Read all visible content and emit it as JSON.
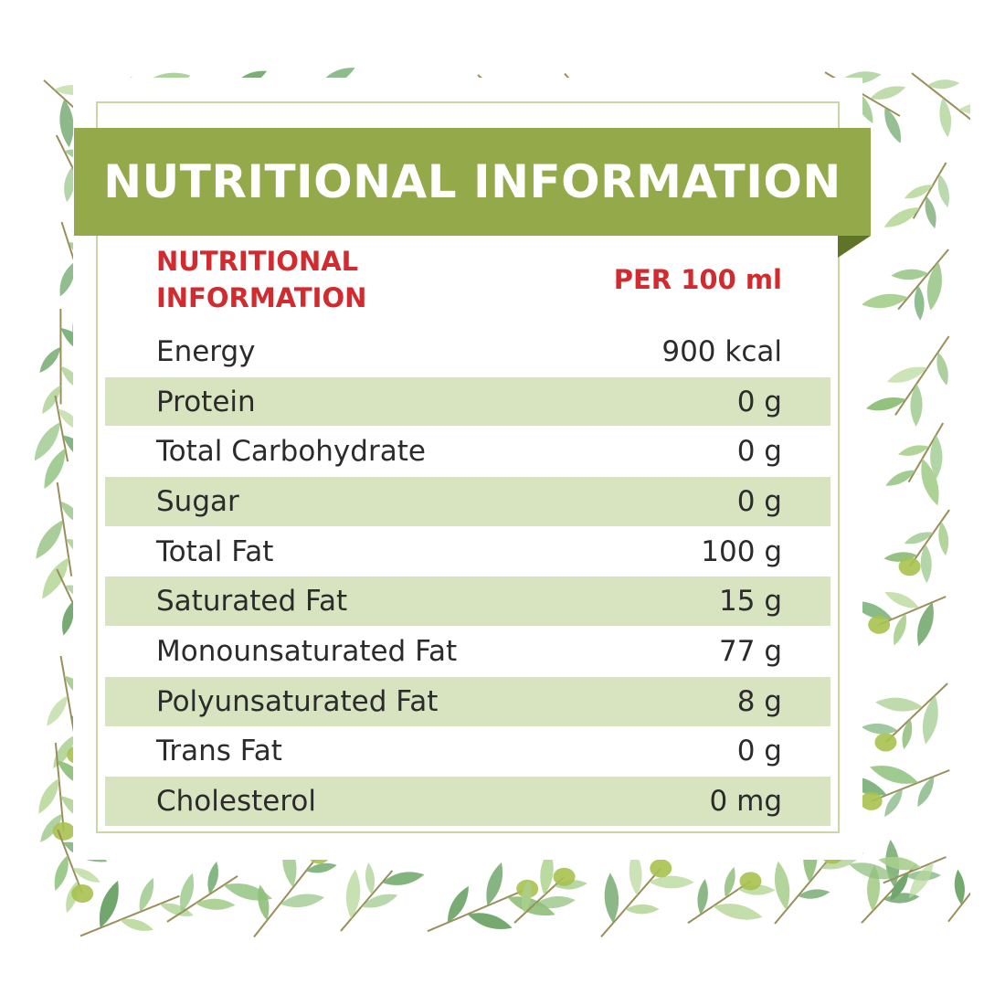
{
  "banner": {
    "title": "NUTRITIONAL INFORMATION"
  },
  "table": {
    "header_nutrient": "NUTRITIONAL INFORMATION",
    "header_amount": "PER 100 ml",
    "rows": [
      {
        "nutrient": "Energy",
        "amount": "900 kcal"
      },
      {
        "nutrient": "Protein",
        "amount": "0 g"
      },
      {
        "nutrient": "Total Carbohydrate",
        "amount": "0 g"
      },
      {
        "nutrient": "Sugar",
        "amount": "0 g"
      },
      {
        "nutrient": "Total Fat",
        "amount": "100 g"
      },
      {
        "nutrient": "Saturated Fat",
        "amount": "15 g"
      },
      {
        "nutrient": "Monounsaturated Fat",
        "amount": "77 g"
      },
      {
        "nutrient": "Polyunsaturated Fat",
        "amount": "8 g"
      },
      {
        "nutrient": "Trans Fat",
        "amount": "0 g"
      },
      {
        "nutrient": "Cholesterol",
        "amount": "0 mg"
      }
    ]
  },
  "colors": {
    "banner": "#93a94a",
    "header_text": "#d12a2f",
    "row_shade": "#d8e3c0",
    "leaf": "#8fbf7a"
  },
  "decoration": {
    "icon": "olive-branch-border"
  }
}
